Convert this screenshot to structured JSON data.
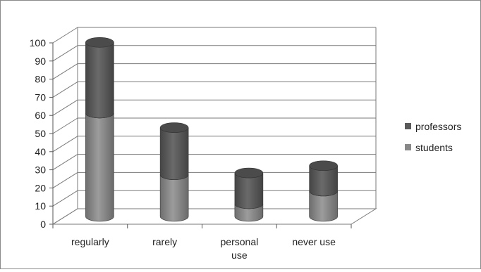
{
  "chart_data": {
    "type": "bar",
    "stacked": true,
    "style": "3d-cylinder",
    "categories": [
      "regularly",
      "rarely",
      "personal use",
      "never use"
    ],
    "category_lines": [
      [
        "regularly"
      ],
      [
        "rarely"
      ],
      [
        "personal",
        "use"
      ],
      [
        "never use"
      ]
    ],
    "series": [
      {
        "name": "students",
        "values": [
          57,
          23,
          7,
          14
        ],
        "color": "#888888"
      },
      {
        "name": "professors",
        "values": [
          39,
          26,
          17,
          14
        ],
        "color": "#5a5a5a"
      }
    ],
    "ylim": [
      0,
      100
    ],
    "yticks": [
      0,
      10,
      20,
      30,
      40,
      50,
      60,
      70,
      80,
      90,
      100
    ],
    "grid": true,
    "legend_position": "right",
    "legend_order": [
      "professors",
      "students"
    ]
  }
}
